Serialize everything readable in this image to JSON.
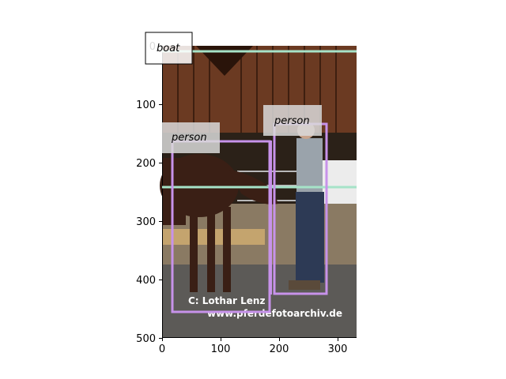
{
  "figure": {
    "x_ticks": [
      "0",
      "100",
      "200",
      "300"
    ],
    "y_ticks": [
      "0",
      "100",
      "200",
      "300",
      "400",
      "500"
    ]
  },
  "colors": {
    "box_person": "#c792ea",
    "line_boat": "#a6e3c8",
    "label_bg": "#d9d9d9"
  },
  "detections": [
    {
      "label": "boat",
      "kind": "line"
    },
    {
      "label": "person",
      "kind": "box"
    },
    {
      "label": "person",
      "kind": "box"
    }
  ],
  "watermark": {
    "line1": "C:  Lothar Lenz",
    "line2": "www.pferdefotoarchiv.de"
  }
}
